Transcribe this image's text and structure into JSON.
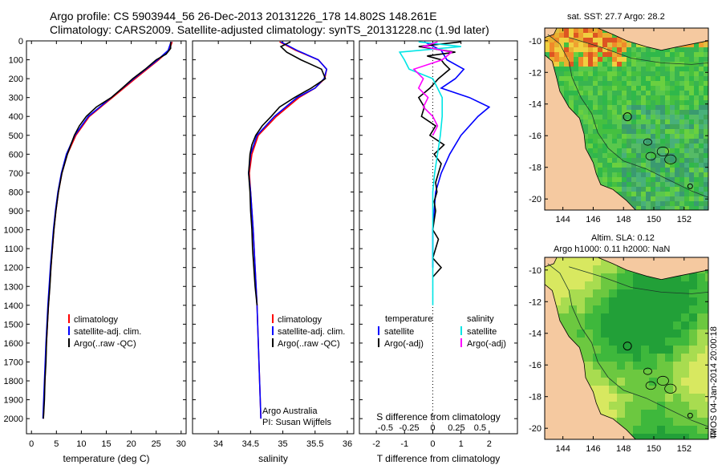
{
  "header": {
    "title_line1": "Argo profile: CS 5903944_56 26-Dec-2013 20131226_178 14.802S 148.261E",
    "title_line2": "Climatology: CARS2009. Satellite-adjusted climatology: synTS_20131228.nc (1.9d later)"
  },
  "colors": {
    "climatology": "#ff0000",
    "satellite": "#0000ff",
    "argo": "#000000",
    "sal_satellite": "#00e5e5",
    "sal_argo": "#ff00ff",
    "land": "#f5c9a0",
    "sea": "#2fb84a"
  },
  "chart_data": [
    {
      "type": "line",
      "name": "temperature",
      "xlabel": "temperature (deg C)",
      "ylabel": "",
      "xlim": [
        -1,
        31
      ],
      "ylim": [
        2080,
        0
      ],
      "xticks": [
        "0",
        "5",
        "10",
        "15",
        "20",
        "25",
        "30"
      ],
      "yticks": [
        "0",
        "100",
        "200",
        "300",
        "400",
        "500",
        "600",
        "700",
        "800",
        "900",
        "1000",
        "1100",
        "1200",
        "1300",
        "1400",
        "1500",
        "1600",
        "1700",
        "1800",
        "1900",
        "2000"
      ],
      "legend": [
        "climatology",
        "satellite-adj. clim.",
        "Argo(..raw -QC)"
      ],
      "series": [
        {
          "name": "climatology",
          "depth": [
            5,
            50,
            100,
            200,
            300,
            400,
            500,
            600,
            700,
            800,
            900,
            1000,
            1200,
            1400,
            1600,
            1800,
            2000
          ],
          "values": [
            28.2,
            27.6,
            25.5,
            20.8,
            16.2,
            11.6,
            8.9,
            7.2,
            6.1,
            5.4,
            4.9,
            4.5,
            3.9,
            3.4,
            3.0,
            2.7,
            2.4
          ]
        },
        {
          "name": "satellite-adj. clim.",
          "depth": [
            5,
            50,
            100,
            200,
            300,
            400,
            500,
            600,
            700,
            800,
            900,
            1000,
            1200,
            1400,
            1600,
            1800,
            2000
          ],
          "values": [
            28.0,
            27.4,
            25.3,
            20.5,
            16.0,
            11.4,
            8.7,
            7.0,
            6.0,
            5.3,
            4.8,
            4.4,
            3.8,
            3.3,
            2.9,
            2.6,
            2.3
          ]
        },
        {
          "name": "Argo(..raw -QC)",
          "depth": [
            5,
            40,
            70,
            100,
            150,
            200,
            250,
            300,
            350,
            400,
            450,
            500,
            600,
            700,
            800,
            900,
            1000,
            1100,
            1200,
            1300,
            1400,
            1500,
            1600,
            1700,
            1800,
            1900,
            2000
          ],
          "values": [
            27.9,
            27.9,
            27.0,
            25.0,
            22.8,
            20.3,
            18.2,
            16.0,
            13.0,
            11.0,
            9.6,
            8.6,
            7.2,
            6.1,
            5.4,
            4.9,
            4.5,
            4.2,
            3.9,
            3.7,
            3.4,
            3.2,
            3.0,
            2.9,
            2.7,
            2.6,
            2.4
          ]
        }
      ]
    },
    {
      "type": "line",
      "name": "salinity",
      "xlabel": "salinity",
      "xlim": [
        33.6,
        36.1
      ],
      "xticks": [
        "34",
        "34.5",
        "35",
        "35.5",
        "36"
      ],
      "legend": [
        "climatology",
        "satellite-adj. clim.",
        "Argo(..raw -QC)"
      ],
      "annotation": [
        "Argo Australia",
        "PI: Susan Wijffels"
      ],
      "series": [
        {
          "name": "climatology",
          "depth": [
            5,
            50,
            100,
            150,
            200,
            250,
            300,
            400,
            500,
            600,
            700,
            800,
            900,
            1000,
            1200,
            1400,
            1600,
            1800,
            2000
          ],
          "values": [
            34.95,
            35.2,
            35.55,
            35.68,
            35.65,
            35.5,
            35.25,
            34.9,
            34.62,
            34.52,
            34.48,
            34.5,
            34.52,
            34.54,
            34.57,
            34.6,
            34.62,
            34.64,
            34.66
          ]
        },
        {
          "name": "satellite-adj. clim.",
          "depth": [
            5,
            50,
            100,
            150,
            200,
            250,
            300,
            400,
            500,
            600,
            700,
            800,
            900,
            1000,
            1200,
            1400,
            1600,
            1800,
            2000
          ],
          "values": [
            34.97,
            35.22,
            35.55,
            35.68,
            35.64,
            35.5,
            35.22,
            34.87,
            34.6,
            34.5,
            34.47,
            34.5,
            34.52,
            34.54,
            34.57,
            34.6,
            34.62,
            34.64,
            34.66
          ]
        },
        {
          "name": "Argo(..raw -QC)",
          "depth": [
            5,
            30,
            60,
            100,
            150,
            200,
            250,
            300,
            350,
            400,
            450,
            500,
            550,
            600,
            650,
            700,
            800,
            900,
            1000,
            1100,
            1200,
            1300,
            1400
          ],
          "values": [
            35.12,
            34.97,
            35.06,
            35.28,
            35.6,
            35.66,
            35.44,
            35.18,
            34.95,
            34.82,
            34.68,
            34.58,
            34.52,
            34.49,
            34.48,
            34.47,
            34.49,
            34.5,
            34.52,
            34.53,
            34.55,
            34.57,
            34.6
          ]
        }
      ]
    },
    {
      "type": "line",
      "name": "difference",
      "xlabel_T": "T difference from climatology",
      "xlabel_S": "S difference from climatology",
      "xlim": [
        -2.6,
        3.0
      ],
      "xticks_T": [
        "-2",
        "-1",
        "0",
        "1",
        "2"
      ],
      "xticks_S": [
        "-0.5",
        "-0.25",
        "0",
        "0.25",
        "0.5"
      ],
      "legend_temperature": {
        "heading": "temperature",
        "items": [
          "satellite",
          "Argo(-adj)"
        ]
      },
      "legend_salinity": {
        "heading": "salinity",
        "items": [
          "satellite",
          "Argo(-adj)"
        ]
      },
      "series": [
        {
          "name": "T satellite",
          "depth": [
            5,
            50,
            100,
            150,
            200,
            250,
            300,
            350,
            400,
            500,
            600,
            700,
            800,
            900,
            1000,
            1100,
            1200
          ],
          "values": [
            -0.3,
            0.3,
            0.5,
            1.1,
            0.8,
            0.3,
            1.3,
            2.0,
            1.6,
            1.0,
            0.6,
            0.3,
            0.1,
            0.05,
            0.0,
            0.0,
            0.0
          ]
        },
        {
          "name": "T Argo(-adj)",
          "depth": [
            5,
            30,
            60,
            80,
            100,
            120,
            150,
            200,
            250,
            300,
            350,
            400,
            450,
            500,
            550,
            600,
            650,
            700,
            750,
            800,
            850,
            900,
            950,
            1000,
            1050,
            1100,
            1150,
            1200,
            1250
          ],
          "values": [
            1.0,
            -0.5,
            0.8,
            -0.2,
            0.3,
            0.4,
            0.6,
            0.2,
            -0.1,
            -0.5,
            -0.3,
            -0.4,
            0.1,
            -0.1,
            0.4,
            0.05,
            0.3,
            0.2,
            0.1,
            0.15,
            0.05,
            0.1,
            0.05,
            0.0,
            0.2,
            0.1,
            0.0,
            0.3,
            0.0
          ]
        },
        {
          "name": "S satellite",
          "depth": [
            5,
            30,
            60,
            100,
            150,
            200,
            300,
            400,
            500,
            600,
            700,
            800,
            900,
            1000,
            1100,
            1200,
            1300,
            1400
          ],
          "values": [
            -0.15,
            0.3,
            -0.35,
            -0.3,
            -0.25,
            0.0,
            0.1,
            0.1,
            0.08,
            0.05,
            0.02,
            0.0,
            0.0,
            0.0,
            0.0,
            0.0,
            0.0,
            0.0
          ]
        },
        {
          "name": "S Argo(-adj)",
          "depth": [
            5,
            30,
            60,
            100,
            150,
            200,
            250,
            300,
            350,
            400,
            450,
            500
          ],
          "values": [
            0.05,
            -0.1,
            0.2,
            0.1,
            -0.2,
            -0.1,
            -0.15,
            -0.05,
            -0.1,
            0.0,
            0.05,
            0.0
          ]
        }
      ]
    },
    {
      "type": "heatmap",
      "name": "sst map",
      "title": "sat. SST: 27.7 Argo: 28.2",
      "xticks": [
        "144",
        "146",
        "148",
        "150",
        "152"
      ],
      "yticks": [
        "-10",
        "-12",
        "-14",
        "-16",
        "-18",
        "-20"
      ],
      "xlim": [
        142.8,
        153.6
      ],
      "ylim": [
        -20.7,
        -9.2
      ],
      "argo_marker": [
        148.261,
        -14.802
      ],
      "secondary_marker": [
        152.4,
        -19.2
      ]
    },
    {
      "type": "heatmap",
      "name": "sla map",
      "title_line1": "Altim. SLA: 0.12",
      "title_line2": "Argo h1000: 0.11 h2000: NaN",
      "xticks": [
        "144",
        "146",
        "148",
        "150",
        "152"
      ],
      "yticks": [
        "-10",
        "-12",
        "-14",
        "-16",
        "-18",
        "-20"
      ],
      "xlim": [
        142.8,
        153.6
      ],
      "ylim": [
        -20.7,
        -9.2
      ],
      "argo_marker": [
        148.261,
        -14.802
      ],
      "secondary_marker": [
        152.4,
        -19.2
      ]
    }
  ],
  "footer": {
    "stamp": "IMOS 04-Jan-2014 20:00:18"
  }
}
